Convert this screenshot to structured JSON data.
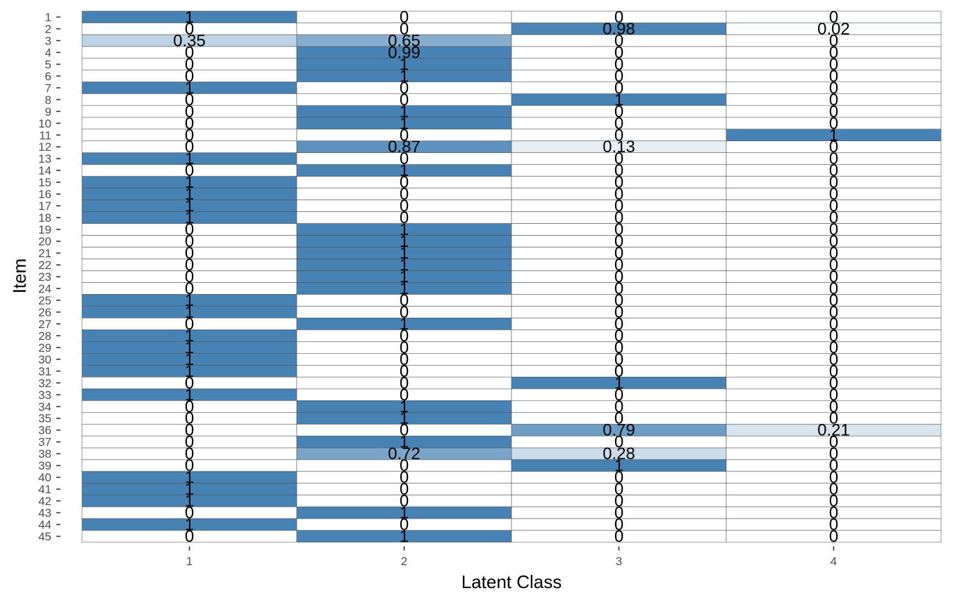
{
  "chart_data": {
    "type": "heatmap",
    "xlabel": "Latent Class",
    "ylabel": "Item",
    "x_categories": [
      "1",
      "2",
      "3",
      "4"
    ],
    "y_categories": [
      "1",
      "2",
      "3",
      "4",
      "5",
      "6",
      "7",
      "8",
      "9",
      "10",
      "11",
      "12",
      "13",
      "14",
      "15",
      "16",
      "17",
      "18",
      "19",
      "20",
      "21",
      "22",
      "23",
      "24",
      "25",
      "26",
      "27",
      "28",
      "29",
      "30",
      "31",
      "32",
      "33",
      "34",
      "35",
      "36",
      "37",
      "38",
      "39",
      "40",
      "41",
      "42",
      "43",
      "44",
      "45"
    ],
    "values": [
      [
        1,
        0,
        0,
        0
      ],
      [
        0,
        0,
        0.98,
        0.02
      ],
      [
        0.35,
        0.65,
        0,
        0
      ],
      [
        0,
        0.99,
        0,
        0
      ],
      [
        0,
        1,
        0,
        0
      ],
      [
        0,
        1,
        0,
        0
      ],
      [
        1,
        0,
        0,
        0
      ],
      [
        0,
        0,
        1,
        0
      ],
      [
        0,
        1,
        0,
        0
      ],
      [
        0,
        1,
        0,
        0
      ],
      [
        0,
        0,
        0,
        1
      ],
      [
        0,
        0.87,
        0.13,
        0
      ],
      [
        1,
        0,
        0,
        0
      ],
      [
        0,
        1,
        0,
        0
      ],
      [
        1,
        0,
        0,
        0
      ],
      [
        1,
        0,
        0,
        0
      ],
      [
        1,
        0,
        0,
        0
      ],
      [
        1,
        0,
        0,
        0
      ],
      [
        0,
        1,
        0,
        0
      ],
      [
        0,
        1,
        0,
        0
      ],
      [
        0,
        1,
        0,
        0
      ],
      [
        0,
        1,
        0,
        0
      ],
      [
        0,
        1,
        0,
        0
      ],
      [
        0,
        1,
        0,
        0
      ],
      [
        1,
        0,
        0,
        0
      ],
      [
        1,
        0,
        0,
        0
      ],
      [
        0,
        1,
        0,
        0
      ],
      [
        1,
        0,
        0,
        0
      ],
      [
        1,
        0,
        0,
        0
      ],
      [
        1,
        0,
        0,
        0
      ],
      [
        1,
        0,
        0,
        0
      ],
      [
        0,
        0,
        1,
        0
      ],
      [
        1,
        0,
        0,
        0
      ],
      [
        0,
        1,
        0,
        0
      ],
      [
        0,
        1,
        0,
        0
      ],
      [
        0,
        0,
        0.79,
        0.21
      ],
      [
        0,
        1,
        0,
        0
      ],
      [
        0,
        0.72,
        0.28,
        0
      ],
      [
        0,
        0,
        1,
        0
      ],
      [
        1,
        0,
        0,
        0
      ],
      [
        1,
        0,
        0,
        0
      ],
      [
        1,
        0,
        0,
        0
      ],
      [
        0,
        1,
        0,
        0
      ],
      [
        1,
        0,
        0,
        0
      ],
      [
        0,
        1,
        0,
        0
      ]
    ],
    "value_range": [
      0,
      1
    ],
    "fill_low": "#ffffff",
    "fill_high": "#4682b4",
    "cell_border": "#555555",
    "grid": false,
    "legend": "none"
  }
}
